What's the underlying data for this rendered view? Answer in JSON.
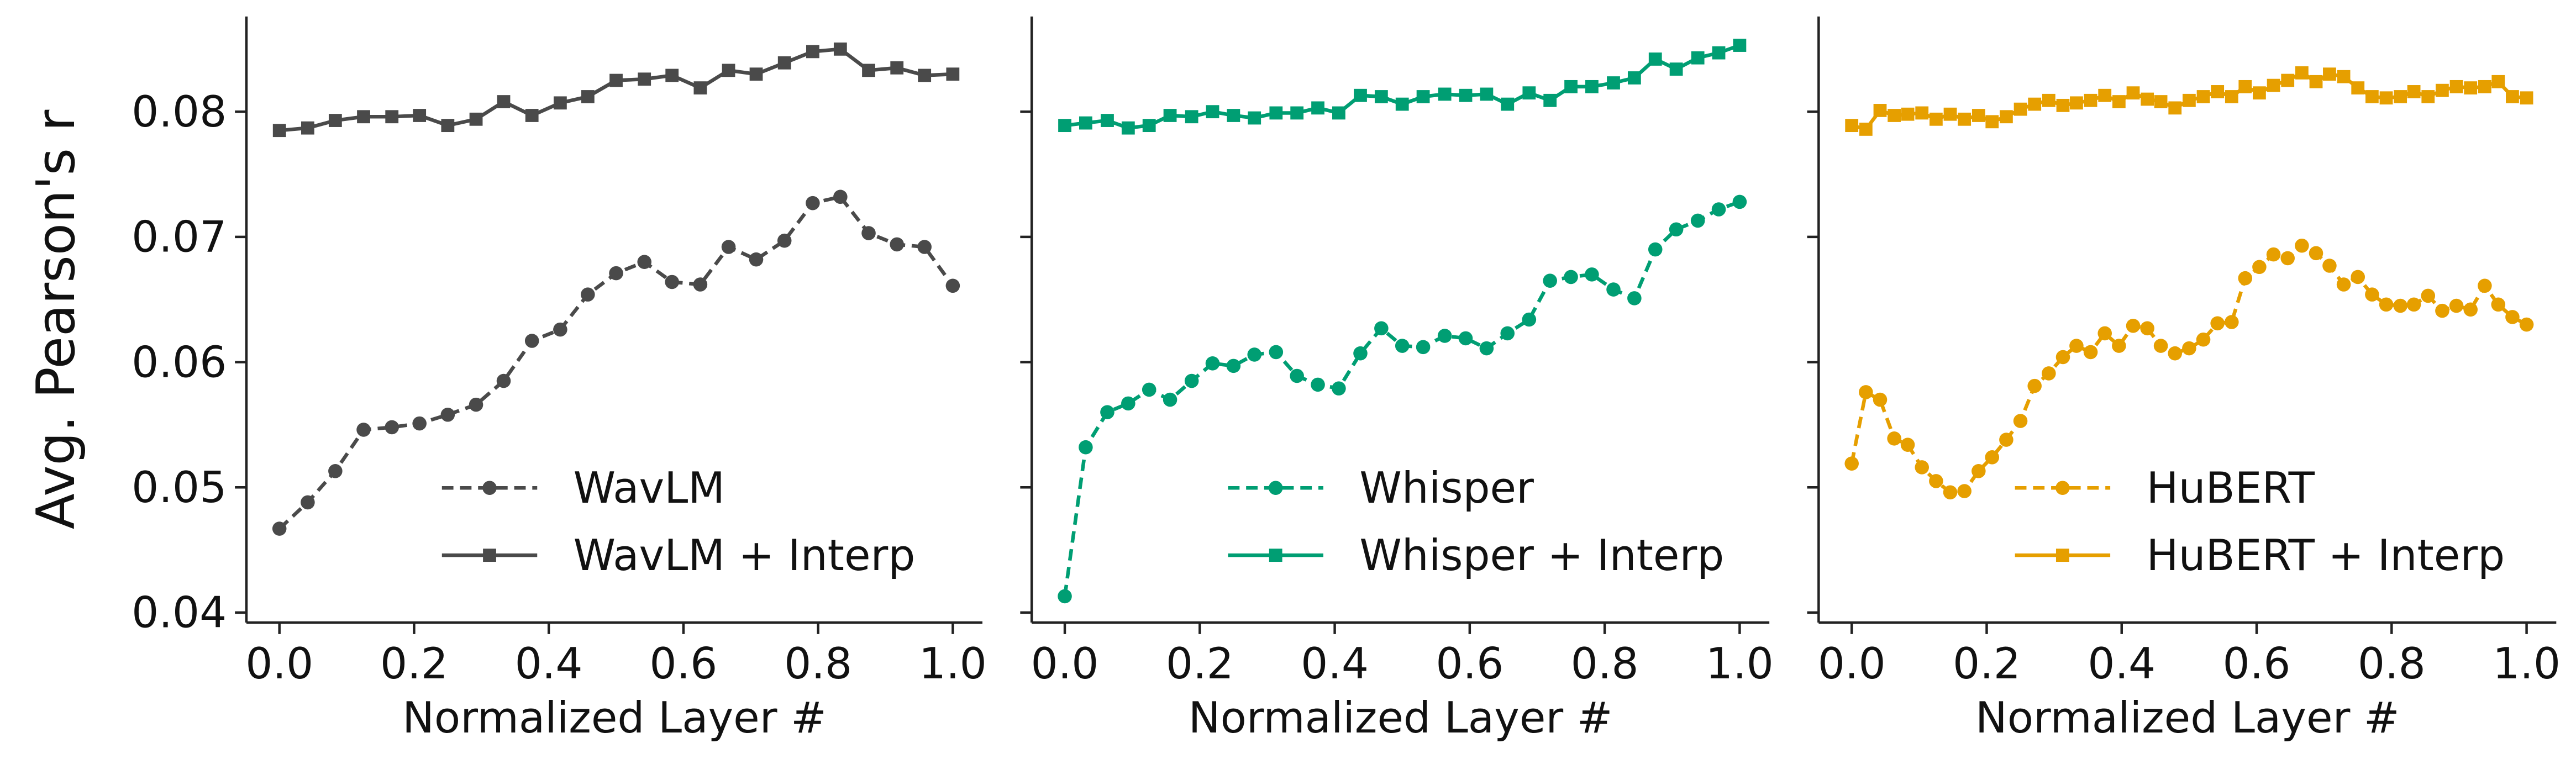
{
  "chart_data": [
    {
      "type": "line",
      "ylabel": "Avg. Pearson's r",
      "xlabel": "Normalized Layer #",
      "legend": "lower center",
      "x": [
        0,
        0.042,
        0.083,
        0.125,
        0.167,
        0.208,
        0.25,
        0.292,
        0.333,
        0.375,
        0.417,
        0.458,
        0.5,
        0.542,
        0.583,
        0.625,
        0.667,
        0.708,
        0.75,
        0.792,
        0.833,
        0.875,
        0.917,
        0.958,
        1
      ],
      "series": [
        {
          "name": "WavLM",
          "color": "#4a4a4a",
          "linestyle": "dashed",
          "marker": "circle",
          "values": [
            0.0467,
            0.0488,
            0.0513,
            0.0546,
            0.0548,
            0.0551,
            0.0558,
            0.0566,
            0.0585,
            0.0617,
            0.0626,
            0.0654,
            0.0671,
            0.068,
            0.0664,
            0.0662,
            0.0692,
            0.0682,
            0.0697,
            0.0727,
            0.0732,
            0.0703,
            0.0694,
            0.0692,
            0.0661
          ]
        },
        {
          "name": "WavLM + Interp",
          "color": "#4a4a4a",
          "linestyle": "solid",
          "marker": "square",
          "values": [
            0.0785,
            0.0787,
            0.0793,
            0.0796,
            0.0796,
            0.0797,
            0.0789,
            0.0794,
            0.0808,
            0.0797,
            0.0807,
            0.0812,
            0.0825,
            0.0826,
            0.0829,
            0.0819,
            0.0833,
            0.083,
            0.0839,
            0.0848,
            0.085,
            0.0833,
            0.0835,
            0.0829,
            0.083
          ]
        }
      ],
      "xlim": [
        -0.049,
        1.044
      ],
      "ylim": [
        0.0392,
        0.0876
      ],
      "xticks": [
        {
          "value": 0,
          "label": "0.0"
        },
        0.2,
        0.4,
        0.6,
        0.8,
        {
          "value": 1,
          "label": "1.0"
        }
      ],
      "yticks": [
        0.04,
        0.05,
        0.06,
        0.07,
        0.08
      ]
    },
    {
      "type": "line",
      "xlabel": "Normalized Layer #",
      "legend": "lower center",
      "x": [
        0,
        0.031,
        0.063,
        0.094,
        0.125,
        0.156,
        0.188,
        0.219,
        0.25,
        0.281,
        0.313,
        0.344,
        0.375,
        0.406,
        0.438,
        0.469,
        0.5,
        0.531,
        0.563,
        0.594,
        0.625,
        0.656,
        0.688,
        0.719,
        0.75,
        0.781,
        0.813,
        0.844,
        0.875,
        0.906,
        0.938,
        0.969,
        1
      ],
      "series": [
        {
          "name": "Whisper",
          "color": "#009e73",
          "linestyle": "dashed",
          "marker": "circle",
          "values": [
            0.0413,
            0.0532,
            0.056,
            0.0567,
            0.0578,
            0.057,
            0.0585,
            0.0599,
            0.0597,
            0.0606,
            0.0608,
            0.0589,
            0.0582,
            0.0579,
            0.0607,
            0.0627,
            0.0613,
            0.0612,
            0.0621,
            0.0619,
            0.0611,
            0.0623,
            0.0634,
            0.0665,
            0.0668,
            0.067,
            0.0658,
            0.0651,
            0.069,
            0.0706,
            0.0713,
            0.0722,
            0.0728
          ]
        },
        {
          "name": "Whisper + Interp",
          "color": "#009e73",
          "linestyle": "solid",
          "marker": "square",
          "values": [
            0.0789,
            0.0791,
            0.0793,
            0.0787,
            0.0789,
            0.0797,
            0.0796,
            0.08,
            0.0797,
            0.0795,
            0.0799,
            0.0799,
            0.0803,
            0.0799,
            0.0813,
            0.0812,
            0.0806,
            0.0812,
            0.0814,
            0.0813,
            0.0814,
            0.0806,
            0.0815,
            0.0809,
            0.082,
            0.082,
            0.0823,
            0.0827,
            0.0842,
            0.0834,
            0.0843,
            0.0847,
            0.0853
          ]
        }
      ],
      "xlim": [
        -0.049,
        1.044
      ],
      "ylim": [
        0.0392,
        0.0876
      ],
      "xticks": [
        {
          "value": 0,
          "label": "0.0"
        },
        0.2,
        0.4,
        0.6,
        0.8,
        {
          "value": 1,
          "label": "1.0"
        }
      ],
      "yticks": [
        0.04,
        0.05,
        0.06,
        0.07,
        0.08
      ]
    },
    {
      "type": "line",
      "xlabel": "Normalized Layer #",
      "legend": "lower center",
      "x": [
        0,
        0.021,
        0.042,
        0.063,
        0.083,
        0.104,
        0.125,
        0.146,
        0.167,
        0.188,
        0.208,
        0.229,
        0.25,
        0.271,
        0.292,
        0.313,
        0.333,
        0.354,
        0.375,
        0.396,
        0.417,
        0.438,
        0.458,
        0.479,
        0.5,
        0.521,
        0.542,
        0.563,
        0.583,
        0.604,
        0.625,
        0.646,
        0.667,
        0.688,
        0.708,
        0.729,
        0.75,
        0.771,
        0.792,
        0.813,
        0.833,
        0.854,
        0.875,
        0.896,
        0.917,
        0.938,
        0.958,
        0.979,
        1
      ],
      "series": [
        {
          "name": "HuBERT",
          "color": "#e69f00",
          "linestyle": "dashed",
          "marker": "circle",
          "values": [
            0.0519,
            0.0576,
            0.057,
            0.0539,
            0.0534,
            0.0516,
            0.0505,
            0.0496,
            0.0497,
            0.0513,
            0.0524,
            0.0538,
            0.0553,
            0.0581,
            0.0591,
            0.0604,
            0.0613,
            0.0608,
            0.0623,
            0.0613,
            0.0629,
            0.0627,
            0.0613,
            0.0607,
            0.0611,
            0.0618,
            0.0631,
            0.0632,
            0.0667,
            0.0676,
            0.0686,
            0.0683,
            0.0693,
            0.0687,
            0.0677,
            0.0662,
            0.0668,
            0.0654,
            0.0646,
            0.0645,
            0.0646,
            0.0653,
            0.0641,
            0.0645,
            0.0642,
            0.0661,
            0.0646,
            0.0636,
            0.063
          ]
        },
        {
          "name": "HuBERT + Interp",
          "color": "#e69f00",
          "linestyle": "solid",
          "marker": "square",
          "values": [
            0.0789,
            0.0786,
            0.0801,
            0.0797,
            0.0798,
            0.0799,
            0.0794,
            0.0798,
            0.0794,
            0.0797,
            0.0792,
            0.0796,
            0.0802,
            0.0806,
            0.0809,
            0.0805,
            0.0807,
            0.0809,
            0.0813,
            0.0808,
            0.0815,
            0.081,
            0.0808,
            0.0803,
            0.0809,
            0.0812,
            0.0816,
            0.0812,
            0.082,
            0.0815,
            0.0821,
            0.0825,
            0.0831,
            0.0824,
            0.083,
            0.0828,
            0.0819,
            0.0812,
            0.0811,
            0.0812,
            0.0816,
            0.0812,
            0.0817,
            0.082,
            0.0819,
            0.082,
            0.0824,
            0.0812,
            0.0811
          ]
        }
      ],
      "xlim": [
        -0.049,
        1.044
      ],
      "ylim": [
        0.0392,
        0.0876
      ],
      "xticks": [
        {
          "value": 0,
          "label": "0.0"
        },
        0.2,
        0.4,
        0.6,
        0.8,
        {
          "value": 1,
          "label": "1.0"
        }
      ],
      "yticks": [
        0.04,
        0.05,
        0.06,
        0.07,
        0.08
      ]
    }
  ]
}
